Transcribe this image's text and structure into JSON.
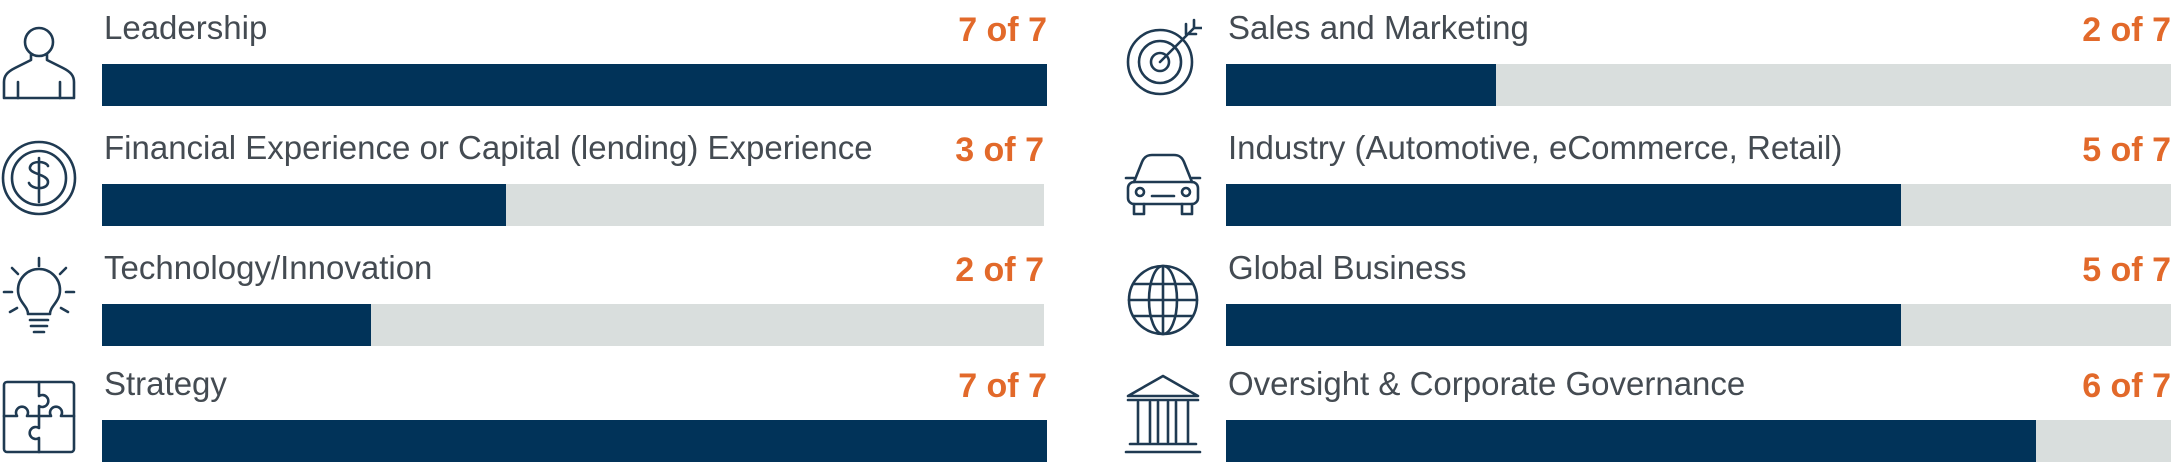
{
  "colors": {
    "fill": "#013359",
    "track": "#d9dedd",
    "count": "#e2692a",
    "label": "#444b52",
    "icon": "#1f3a52"
  },
  "skills": [
    {
      "icon": "person-icon",
      "label": "Leadership",
      "count_text": "7 of 7"
    },
    {
      "icon": "dollar-coin-icon",
      "label": "Financial Experience or Capital (lending) Experience",
      "count_text": "3 of 7"
    },
    {
      "icon": "lightbulb-icon",
      "label": "Technology/Innovation",
      "count_text": "2 of 7"
    },
    {
      "icon": "puzzle-icon",
      "label": "Strategy",
      "count_text": "7 of 7"
    },
    {
      "icon": "target-icon",
      "label": "Sales and Marketing",
      "count_text": "2 of 7"
    },
    {
      "icon": "car-icon",
      "label": "Industry (Automotive, eCommerce, Retail)",
      "count_text": "5 of 7"
    },
    {
      "icon": "globe-icon",
      "label": "Global Business",
      "count_text": "5 of 7"
    },
    {
      "icon": "bank-icon",
      "label": "Oversight & Corporate Governance",
      "count_text": "6 of 7"
    }
  ],
  "chart_data": {
    "type": "bar",
    "categories": [
      "Leadership",
      "Financial Experience or Capital (lending) Experience",
      "Technology/Innovation",
      "Strategy",
      "Sales and Marketing",
      "Industry (Automotive, eCommerce, Retail)",
      "Global Business",
      "Oversight & Corporate Governance"
    ],
    "values": [
      7,
      3,
      2,
      7,
      2,
      5,
      5,
      6
    ],
    "max": 7
  }
}
